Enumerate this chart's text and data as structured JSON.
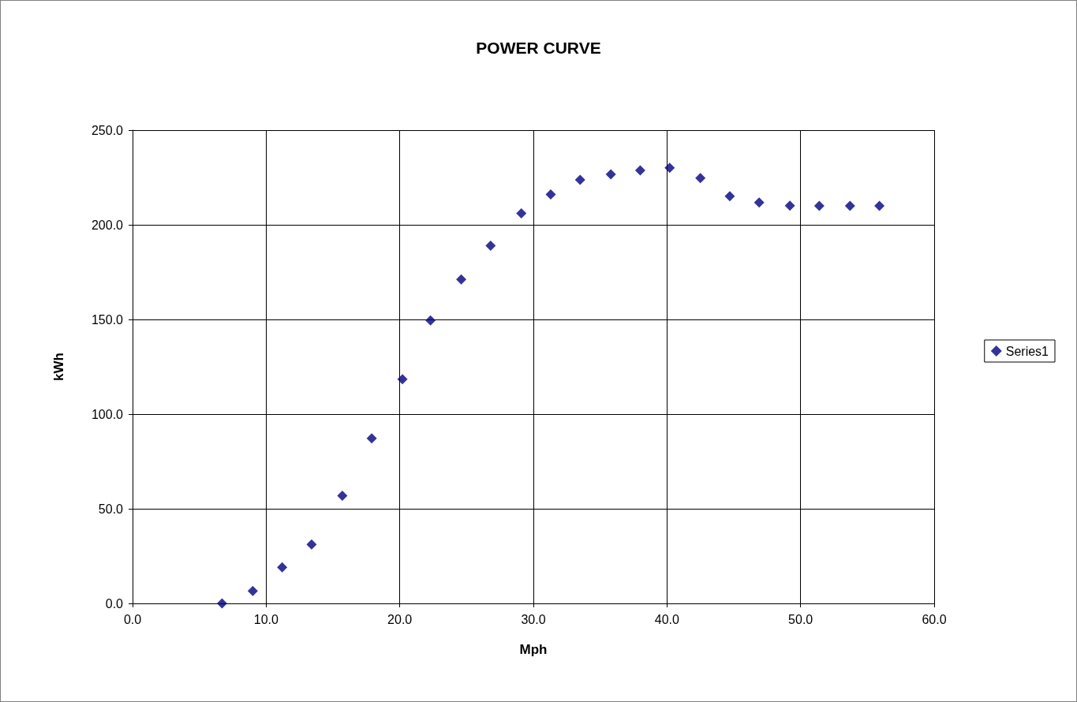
{
  "chart_data": {
    "type": "scatter",
    "title": "POWER CURVE",
    "xlabel": "Mph",
    "ylabel": "kWh",
    "series": [
      {
        "name": "Series1",
        "color": "#000080",
        "x": [
          6.7,
          9.0,
          11.2,
          13.4,
          15.7,
          17.9,
          20.2,
          22.3,
          24.6,
          26.8,
          29.1,
          31.3,
          33.5,
          35.8,
          38.0,
          40.2,
          42.5,
          44.7,
          46.9,
          49.2,
          51.4,
          53.7,
          55.9
        ],
        "values": [
          0,
          6.6,
          19.1,
          31.1,
          56.9,
          87.2,
          118.4,
          149.5,
          171.1,
          189.0,
          206.0,
          216.0,
          223.8,
          226.7,
          228.8,
          230.1,
          224.7,
          215.1,
          211.8,
          210.1,
          210.0,
          210.0,
          210.0
        ]
      }
    ],
    "xlim": [
      0,
      60
    ],
    "xticks": [
      {
        "value": 0,
        "label": "0.0"
      },
      {
        "value": 10,
        "label": "10.0"
      },
      {
        "value": 20,
        "label": "20.0"
      },
      {
        "value": 30,
        "label": "30.0"
      },
      {
        "value": 40,
        "label": "40.0"
      },
      {
        "value": 50,
        "label": "50.0"
      },
      {
        "value": 60,
        "label": "60.0"
      }
    ],
    "ylim": [
      0,
      250
    ],
    "yticks": [
      {
        "value": 0,
        "label": "0.0"
      },
      {
        "value": 50,
        "label": "50.0"
      },
      {
        "value": 100,
        "label": "100.0"
      },
      {
        "value": 150,
        "label": "150.0"
      },
      {
        "value": 200,
        "label": "200.0"
      },
      {
        "value": 250,
        "label": "250.0"
      }
    ],
    "grid": true,
    "legend": "right",
    "marker": "diamond"
  }
}
